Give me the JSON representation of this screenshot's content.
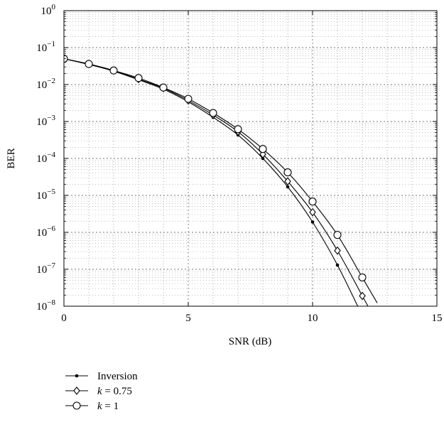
{
  "chart_data": {
    "type": "line",
    "xlabel": "SNR (dB)",
    "ylabel": "BER",
    "xlim": [
      0,
      15
    ],
    "ylim": [
      1e-08,
      1
    ],
    "yscale": "log",
    "grid": "major dashed, minor dotted",
    "x_ticks": [
      "0",
      "5",
      "10",
      "15"
    ],
    "y_ticks": [
      {
        "base": "10",
        "exp": "0"
      },
      {
        "base": "10",
        "exp": "−1"
      },
      {
        "base": "10",
        "exp": "−2"
      },
      {
        "base": "10",
        "exp": "−3"
      },
      {
        "base": "10",
        "exp": "−4"
      },
      {
        "base": "10",
        "exp": "−5"
      },
      {
        "base": "10",
        "exp": "−6"
      },
      {
        "base": "10",
        "exp": "−7"
      },
      {
        "base": "10",
        "exp": "−8"
      }
    ],
    "legend_position": "below",
    "series": [
      {
        "name": "Inversion",
        "legend_label": {
          "var": "",
          "rest": "Inversion"
        },
        "marker": "dot",
        "x": [
          0,
          1,
          2,
          3,
          4,
          5,
          6,
          7,
          8,
          9,
          10,
          11,
          12
        ],
        "y": [
          0.05,
          0.035,
          0.023,
          0.0135,
          0.0075,
          0.0034,
          0.0013,
          0.00043,
          0.0001,
          1.7e-05,
          1.9e-06,
          1.3e-07,
          5.5e-09
        ]
      },
      {
        "name": "k = 0.75",
        "legend_label": {
          "var": "k",
          "rest": " = 0.75"
        },
        "marker": "diamond",
        "x": [
          0,
          1,
          2,
          3,
          4,
          5,
          6,
          7,
          8,
          9,
          10,
          11,
          12
        ],
        "y": [
          0.05,
          0.036,
          0.024,
          0.014,
          0.008,
          0.0037,
          0.0015,
          0.00053,
          0.00013,
          2.4e-05,
          3.5e-06,
          3.2e-07,
          1.9e-08
        ]
      },
      {
        "name": "k = 1",
        "legend_label": {
          "var": "k",
          "rest": " = 1"
        },
        "marker": "circle",
        "x": [
          0,
          1,
          2,
          3,
          4,
          5,
          6,
          7,
          8,
          9,
          10,
          11,
          12
        ],
        "y": [
          0.05,
          0.036,
          0.024,
          0.015,
          0.0083,
          0.0041,
          0.0017,
          0.00062,
          0.00018,
          4.2e-05,
          6.8e-06,
          8.5e-07,
          6e-08
        ]
      }
    ]
  }
}
